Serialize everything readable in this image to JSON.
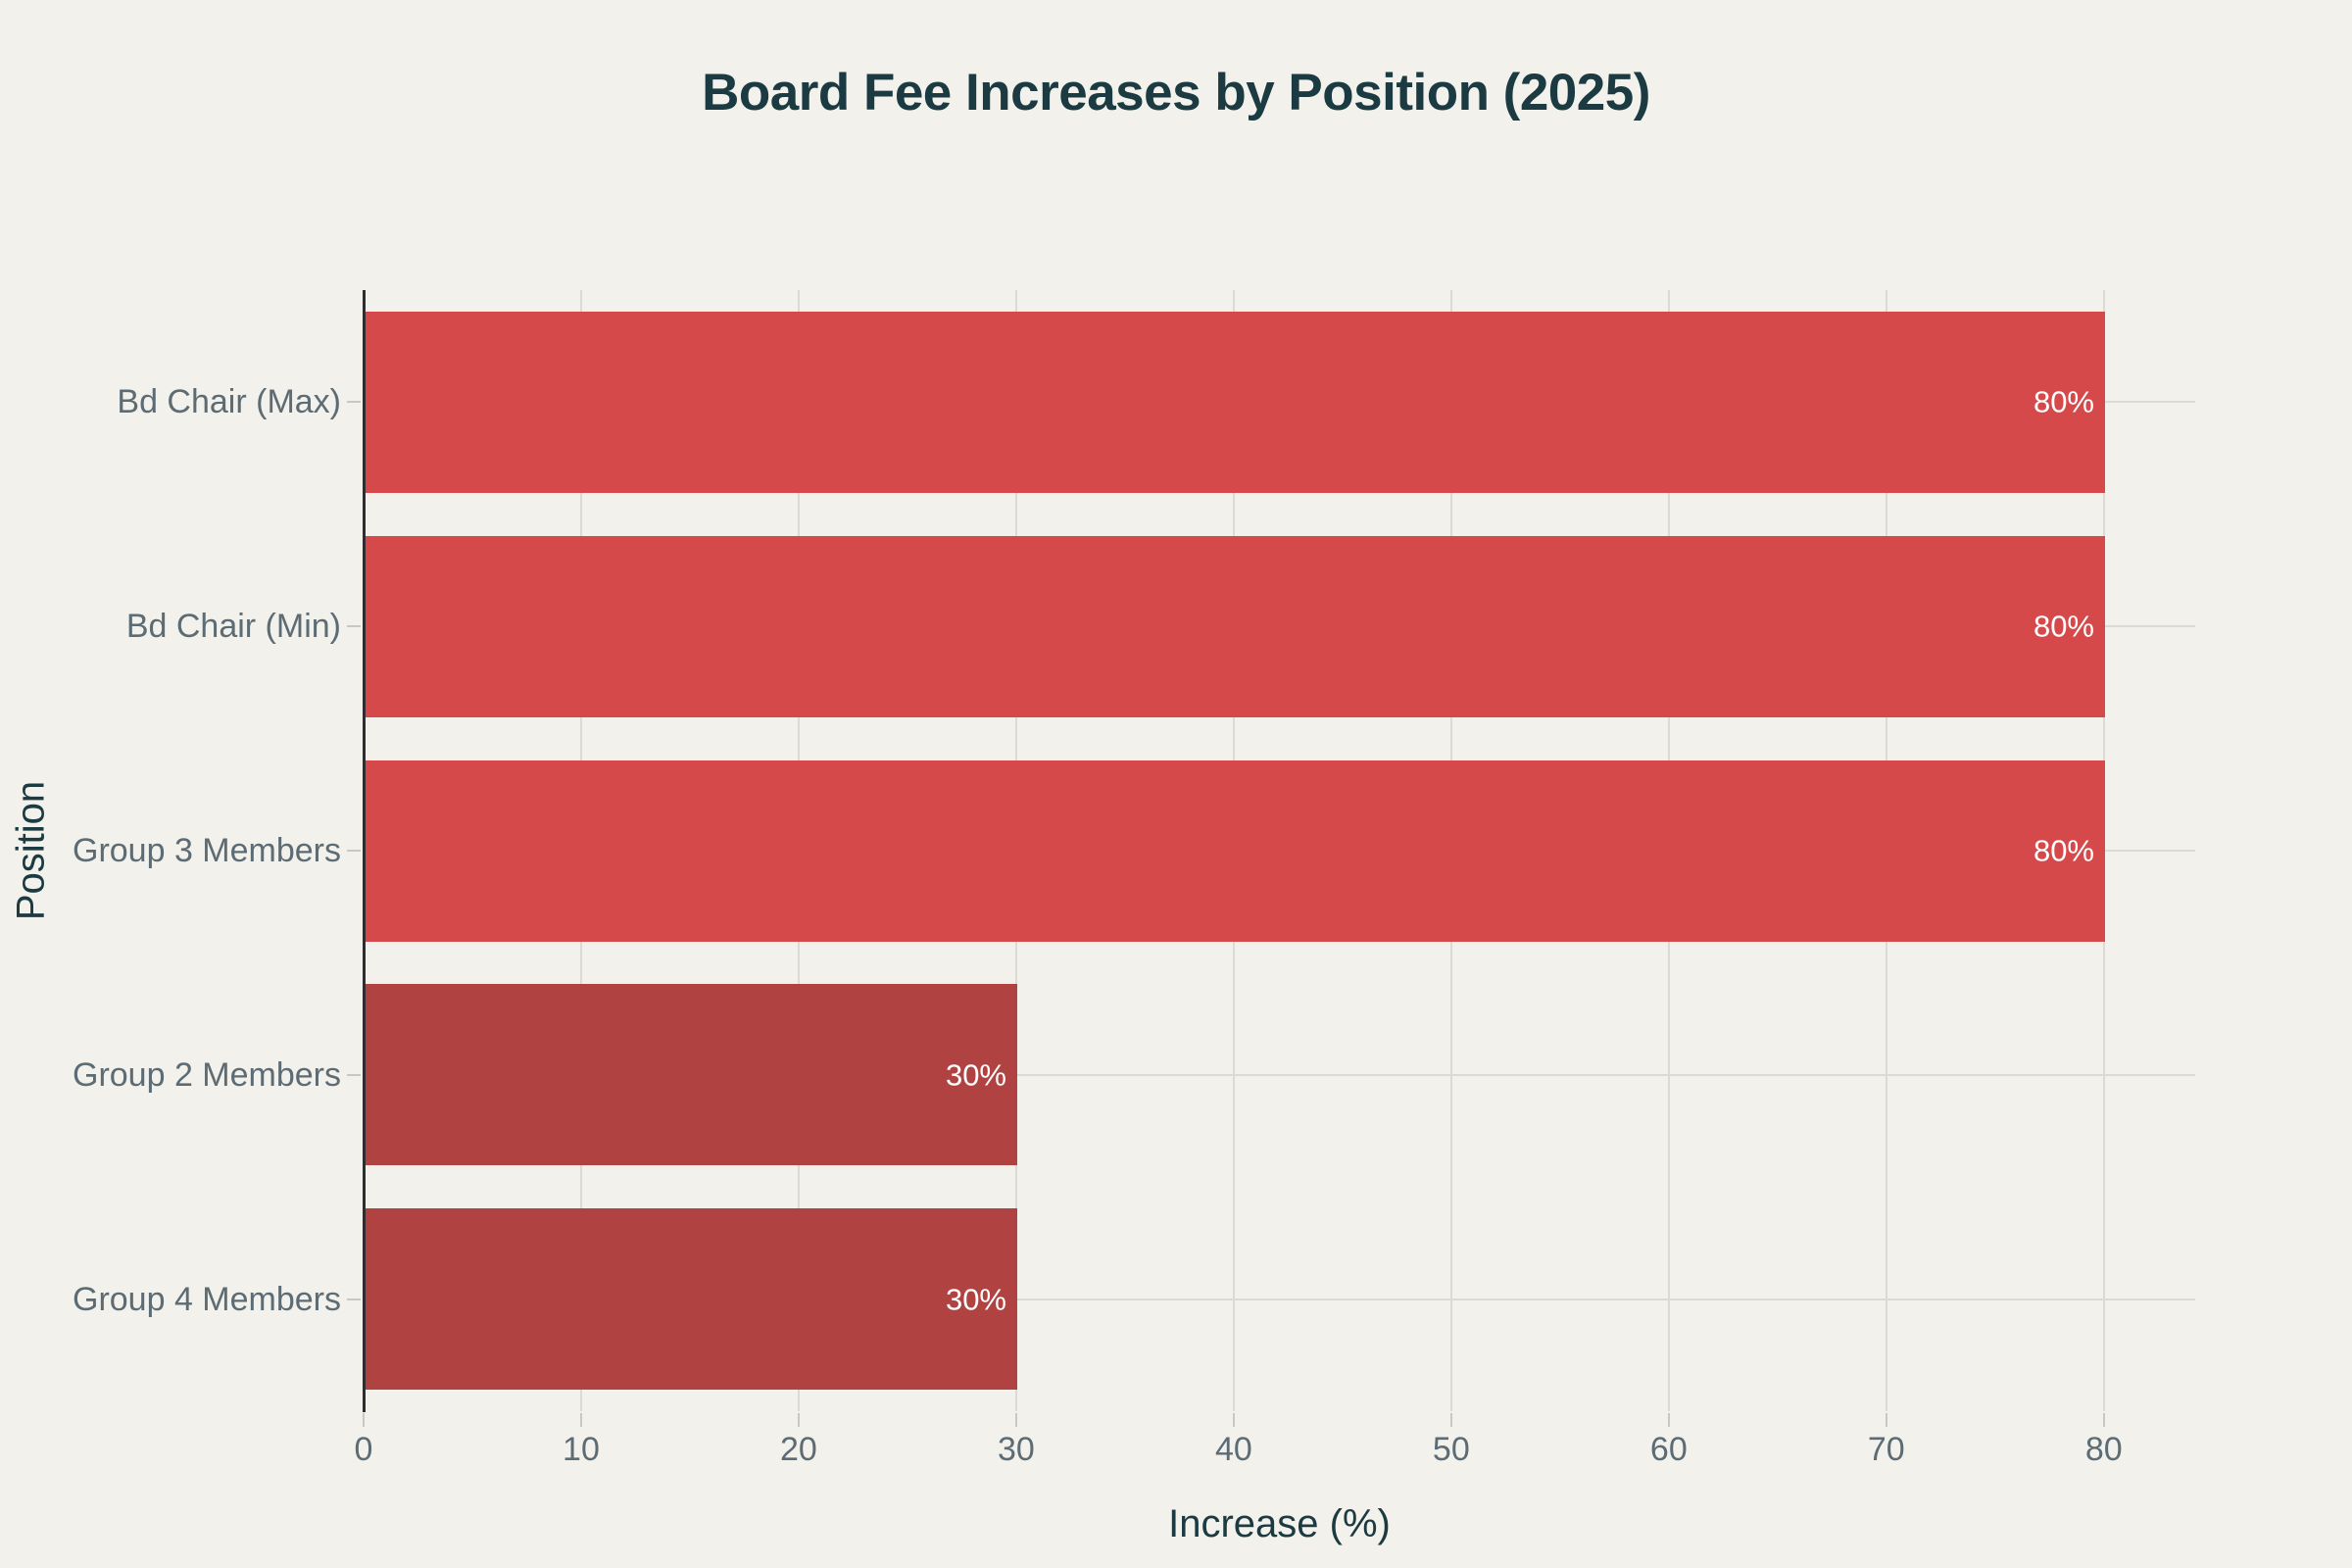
{
  "chart_data": {
    "type": "bar",
    "orientation": "horizontal",
    "title": "Board Fee Increases by Position (2025)",
    "xlabel": "Increase (%)",
    "ylabel": "Position",
    "categories": [
      "Bd Chair (Max)",
      "Bd Chair (Min)",
      "Group 3 Members",
      "Group 2 Members",
      "Group 4 Members"
    ],
    "values": [
      80,
      80,
      80,
      30,
      30
    ],
    "value_labels": [
      "80%",
      "80%",
      "80%",
      "30%",
      "30%"
    ],
    "bar_colors": [
      "#D6494A",
      "#D6494A",
      "#D6494A",
      "#B04341",
      "#B04341"
    ],
    "xticks": [
      0,
      10,
      20,
      30,
      40,
      50,
      60,
      70,
      80
    ],
    "xlim": [
      0,
      84.2
    ],
    "grid": true,
    "legend": null,
    "colors": {
      "background": "#F2F1EB",
      "title_text": "#1B3A41",
      "axis_label_text": "#1B3A41",
      "tick_label_text": "#5D6C74",
      "gridline": "#DCDAD2",
      "axis_spine": "#2E2E2E",
      "tick_mark": "#C9C8C1",
      "bar_value_text": "#FFFFFF"
    }
  }
}
